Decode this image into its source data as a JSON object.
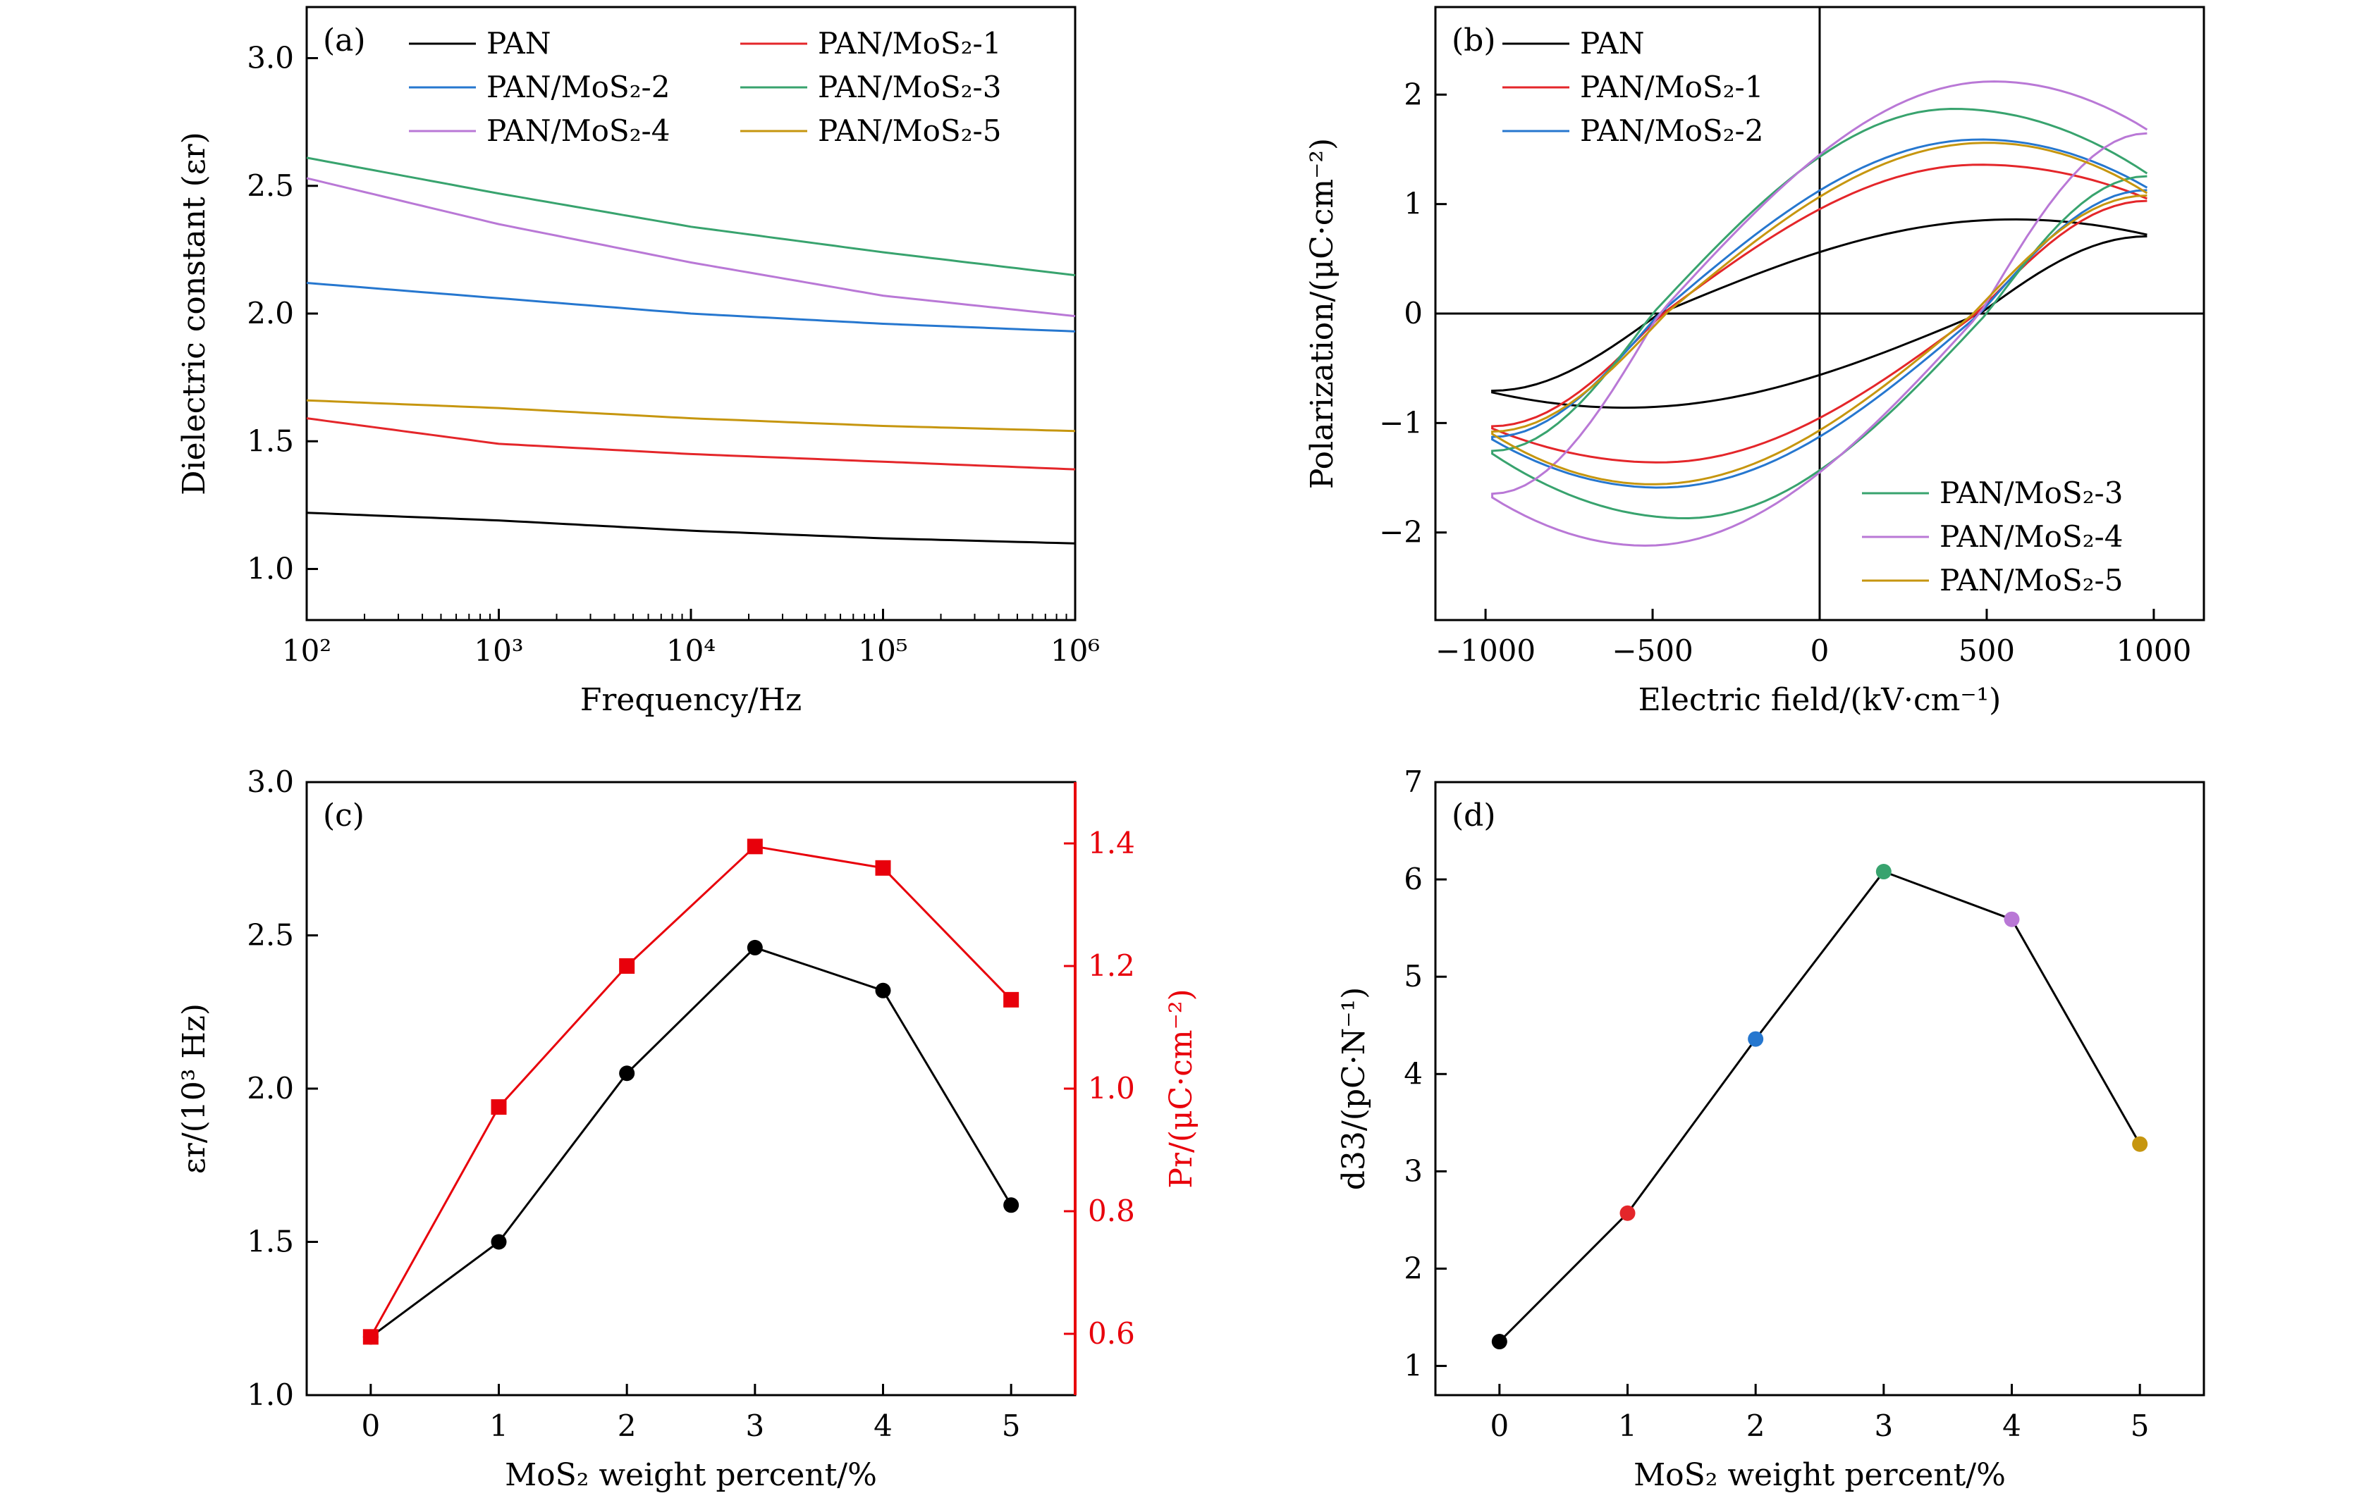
{
  "chart_data": [
    {
      "panel": "(a)",
      "type": "line",
      "xscale": "log",
      "xlim": [
        100,
        1000000
      ],
      "ylim": [
        0.8,
        3.2
      ],
      "xlabel": "Frequency/Hz",
      "ylabel": "Dielectric constant (εr)",
      "xticks": [
        {
          "value": 100,
          "label": "10²"
        },
        {
          "value": 1000,
          "label": "10³"
        },
        {
          "value": 10000,
          "label": "10⁴"
        },
        {
          "value": 100000,
          "label": "10⁵"
        },
        {
          "value": 1000000,
          "label": "10⁶"
        }
      ],
      "yticks": [
        {
          "value": 1.0,
          "label": "1.0"
        },
        {
          "value": 1.5,
          "label": "1.5"
        },
        {
          "value": 2.0,
          "label": "2.0"
        },
        {
          "value": 2.5,
          "label": "2.5"
        },
        {
          "value": 3.0,
          "label": "3.0"
        }
      ],
      "legend_position": "top",
      "series": [
        {
          "name": "PAN",
          "color": "#000000",
          "x": [
            100,
            1000,
            10000,
            100000,
            1000000
          ],
          "y": [
            1.22,
            1.19,
            1.15,
            1.12,
            1.1
          ]
        },
        {
          "name": "PAN/MoS₂-1",
          "color": "#e4262a",
          "x": [
            100,
            1000,
            10000,
            100000,
            1000000
          ],
          "y": [
            1.59,
            1.49,
            1.45,
            1.42,
            1.39
          ]
        },
        {
          "name": "PAN/MoS₂-2",
          "color": "#2677cf",
          "x": [
            100,
            1000,
            10000,
            100000,
            1000000
          ],
          "y": [
            2.12,
            2.06,
            2.0,
            1.96,
            1.93
          ]
        },
        {
          "name": "PAN/MoS₂-3",
          "color": "#38a36e",
          "x": [
            100,
            1000,
            10000,
            100000,
            1000000
          ],
          "y": [
            2.61,
            2.47,
            2.34,
            2.24,
            2.15
          ]
        },
        {
          "name": "PAN/MoS₂-4",
          "color": "#b978d6",
          "x": [
            100,
            1000,
            10000,
            100000,
            1000000
          ],
          "y": [
            2.53,
            2.35,
            2.2,
            2.07,
            1.99
          ]
        },
        {
          "name": "PAN/MoS₂-5",
          "color": "#c6960f",
          "x": [
            100,
            1000,
            10000,
            100000,
            1000000
          ],
          "y": [
            1.66,
            1.63,
            1.59,
            1.56,
            1.54
          ]
        }
      ]
    },
    {
      "panel": "(b)",
      "type": "line",
      "xlim": [
        -1150,
        1150
      ],
      "ylim": [
        -2.8,
        2.8
      ],
      "xlabel": "Electric field/(kV·cm⁻¹)",
      "ylabel": "Polarization/(μC·cm⁻²)",
      "xticks": [
        {
          "value": -1000,
          "label": "−1000"
        },
        {
          "value": -500,
          "label": "−500"
        },
        {
          "value": 0,
          "label": "0"
        },
        {
          "value": 500,
          "label": "500"
        },
        {
          "value": 1000,
          "label": "1000"
        }
      ],
      "yticks": [
        {
          "value": -2,
          "label": "−2"
        },
        {
          "value": -1,
          "label": "−1"
        },
        {
          "value": 0,
          "label": "0"
        },
        {
          "value": 1,
          "label": "1"
        },
        {
          "value": 2,
          "label": "2"
        }
      ],
      "legend_positions": [
        "top-left",
        "bottom-right"
      ],
      "loops": [
        {
          "name": "PAN",
          "color": "#000000",
          "emax": 980,
          "pend": 0.72,
          "pmax": 0.86,
          "epeak": 580,
          "ec": 480,
          "legend": "top-left"
        },
        {
          "name": "PAN/MoS₂-1",
          "color": "#e4262a",
          "emax": 980,
          "pend": 1.05,
          "pmax": 1.36,
          "epeak": 480,
          "ec": 470,
          "legend": "top-left"
        },
        {
          "name": "PAN/MoS₂-2",
          "color": "#2677cf",
          "emax": 980,
          "pend": 1.15,
          "pmax": 1.59,
          "epeak": 480,
          "ec": 480,
          "legend": "top-left"
        },
        {
          "name": "PAN/MoS₂-3",
          "color": "#38a36e",
          "emax": 980,
          "pend": 1.28,
          "pmax": 1.87,
          "epeak": 400,
          "ec": 500,
          "legend": "bottom-right"
        },
        {
          "name": "PAN/MoS₂-4",
          "color": "#b978d6",
          "emax": 980,
          "pend": 1.68,
          "pmax": 2.12,
          "epeak": 520,
          "ec": 480,
          "legend": "bottom-right"
        },
        {
          "name": "PAN/MoS₂-5",
          "color": "#c6960f",
          "emax": 980,
          "pend": 1.1,
          "pmax": 1.56,
          "epeak": 500,
          "ec": 460,
          "legend": "bottom-right"
        }
      ]
    },
    {
      "panel": "(c)",
      "type": "line",
      "xlim": [
        -0.5,
        5.5
      ],
      "ylim": [
        1.0,
        3.0
      ],
      "ylim_right": [
        0.5,
        1.5
      ],
      "xlabel": "MoS₂ weight percent/%",
      "ylabel": "εr/(10³ Hz)",
      "ylabel_right": "Pr/(μC·cm⁻²)",
      "right_axis_color": "#e8000b",
      "xticks": [
        {
          "value": 0,
          "label": "0"
        },
        {
          "value": 1,
          "label": "1"
        },
        {
          "value": 2,
          "label": "2"
        },
        {
          "value": 3,
          "label": "3"
        },
        {
          "value": 4,
          "label": "4"
        },
        {
          "value": 5,
          "label": "5"
        }
      ],
      "yticks": [
        {
          "value": 1.0,
          "label": "1.0"
        },
        {
          "value": 1.5,
          "label": "1.5"
        },
        {
          "value": 2.0,
          "label": "2.0"
        },
        {
          "value": 2.5,
          "label": "2.5"
        },
        {
          "value": 3.0,
          "label": "3.0"
        }
      ],
      "yticks_right": [
        {
          "value": 0.6,
          "label": "0.6"
        },
        {
          "value": 0.8,
          "label": "0.8"
        },
        {
          "value": 1.0,
          "label": "1.0"
        },
        {
          "value": 1.2,
          "label": "1.2"
        },
        {
          "value": 1.4,
          "label": "1.4"
        }
      ],
      "series": [
        {
          "name": "εr",
          "axis": "left",
          "color": "#000000",
          "marker": "circle",
          "x": [
            0,
            1,
            2,
            3,
            4,
            5
          ],
          "y": [
            1.19,
            1.5,
            2.05,
            2.46,
            2.32,
            1.62
          ]
        },
        {
          "name": "Pr",
          "axis": "right",
          "color": "#e8000b",
          "marker": "square",
          "x": [
            0,
            1,
            2,
            3,
            4,
            5
          ],
          "y": [
            0.595,
            0.97,
            1.2,
            1.395,
            1.36,
            1.145
          ]
        }
      ]
    },
    {
      "panel": "(d)",
      "type": "line",
      "xlim": [
        -0.5,
        5.5
      ],
      "ylim": [
        0.7,
        7.0
      ],
      "xlabel": "MoS₂ weight percent/%",
      "ylabel": "d33/(pC·N⁻¹)",
      "xticks": [
        {
          "value": 0,
          "label": "0"
        },
        {
          "value": 1,
          "label": "1"
        },
        {
          "value": 2,
          "label": "2"
        },
        {
          "value": 3,
          "label": "3"
        },
        {
          "value": 4,
          "label": "4"
        },
        {
          "value": 5,
          "label": "5"
        }
      ],
      "yticks": [
        {
          "value": 1,
          "label": "1"
        },
        {
          "value": 2,
          "label": "2"
        },
        {
          "value": 3,
          "label": "3"
        },
        {
          "value": 4,
          "label": "4"
        },
        {
          "value": 5,
          "label": "5"
        },
        {
          "value": 6,
          "label": "6"
        },
        {
          "value": 7,
          "label": "7"
        }
      ],
      "series": [
        {
          "name": "d33",
          "color": "#000000",
          "x": [
            0,
            1,
            2,
            3,
            4,
            5
          ],
          "y": [
            1.25,
            2.57,
            4.36,
            6.08,
            5.59,
            3.28
          ],
          "point_colors": [
            "#000000",
            "#e4262a",
            "#2677cf",
            "#38a36e",
            "#b978d6",
            "#c6960f"
          ]
        }
      ]
    }
  ]
}
